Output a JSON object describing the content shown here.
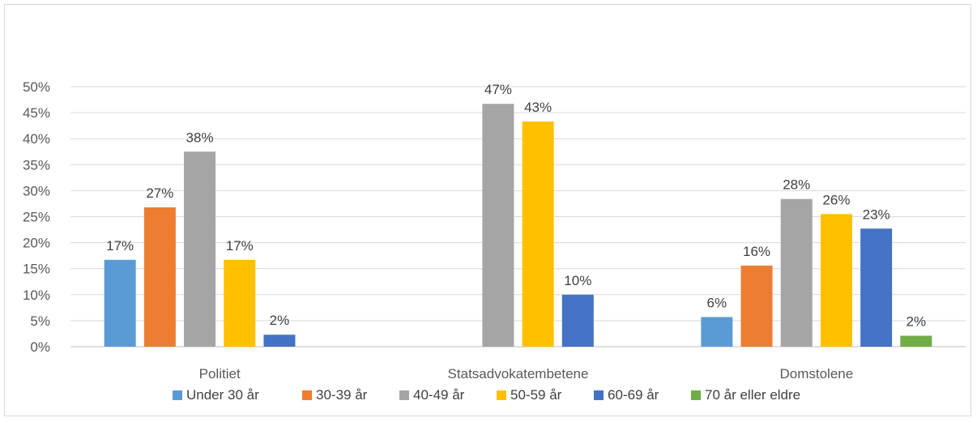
{
  "chart_data": {
    "type": "bar",
    "title": "",
    "xlabel": "",
    "ylabel": "",
    "ylim": [
      0,
      50
    ],
    "yticks": [
      0,
      5,
      10,
      15,
      20,
      25,
      30,
      35,
      40,
      45,
      50
    ],
    "ytick_suffix": "%",
    "grid": true,
    "legend_position": "bottom",
    "categories": [
      "Politiet",
      "Statsadvokatembetene",
      "Domstolene"
    ],
    "series": [
      {
        "name": "Under 30 år",
        "color": "#5b9bd5",
        "values": [
          16.7,
          null,
          5.7
        ],
        "labels": [
          "17%",
          "",
          "6%"
        ]
      },
      {
        "name": "30-39 år",
        "color": "#ed7d31",
        "values": [
          26.8,
          null,
          15.6
        ],
        "labels": [
          "27%",
          "",
          "16%"
        ]
      },
      {
        "name": "40-49 år",
        "color": "#a5a5a5",
        "values": [
          37.5,
          46.7,
          28.4
        ],
        "labels": [
          "38%",
          "47%",
          "28%"
        ]
      },
      {
        "name": "50-59 år",
        "color": "#ffc000",
        "values": [
          16.7,
          43.3,
          25.5
        ],
        "labels": [
          "17%",
          "43%",
          "26%"
        ]
      },
      {
        "name": "60-69 år",
        "color": "#4472c4",
        "values": [
          2.3,
          10.0,
          22.7
        ],
        "labels": [
          "2%",
          "10%",
          "23%"
        ]
      },
      {
        "name": "70 år eller eldre",
        "color": "#70ad47",
        "values": [
          null,
          null,
          2.1
        ],
        "labels": [
          "",
          "",
          "2%"
        ]
      }
    ]
  }
}
